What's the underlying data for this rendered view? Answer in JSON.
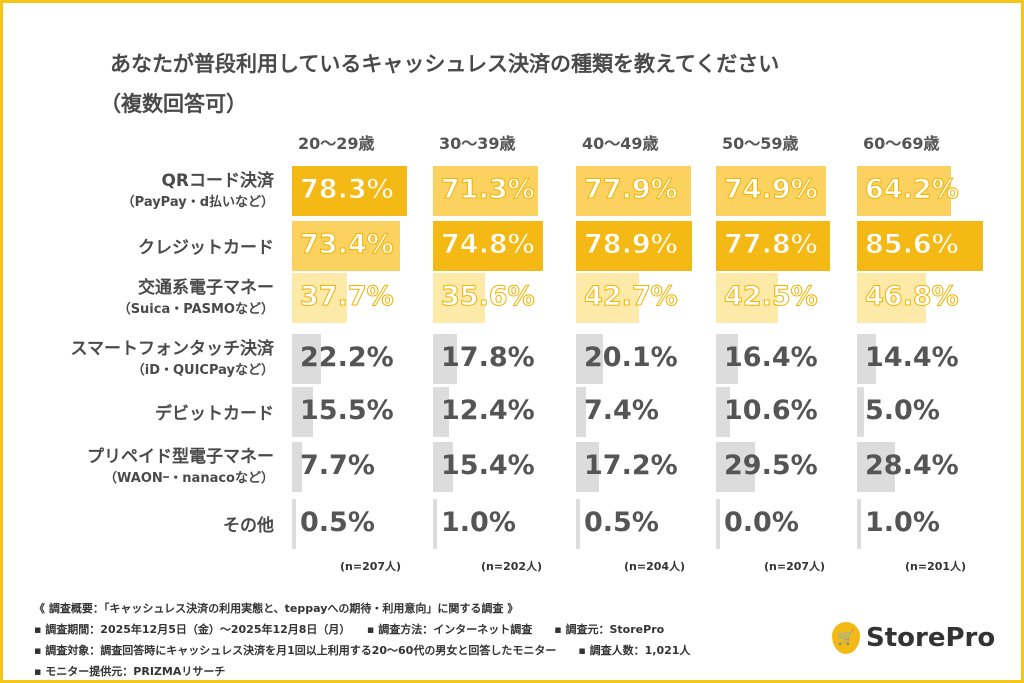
{
  "chart_data": {
    "type": "heatmap",
    "title": "あなたが普段利用しているキャッシュレス決済の種類を教えてください",
    "subtitle": "（複数回答可）",
    "columns": [
      "20〜29歳",
      "30〜39歳",
      "40〜49歳",
      "50〜59歳",
      "60〜69歳"
    ],
    "sample_sizes": [
      "(n=207人)",
      "(n=202人)",
      "(n=204人)",
      "(n=207人)",
      "(n=201人)"
    ],
    "rows": [
      {
        "label": "QRコード決済",
        "sub": "（PayPay・d払いなど）",
        "values": [
          78.3,
          71.3,
          77.9,
          74.9,
          64.2
        ]
      },
      {
        "label": "クレジットカード",
        "sub": "",
        "values": [
          73.4,
          74.8,
          78.9,
          77.8,
          85.6
        ]
      },
      {
        "label": "交通系電子マネー",
        "sub": "（Suica・PASMOなど）",
        "values": [
          37.7,
          35.6,
          42.7,
          42.5,
          46.8
        ]
      },
      {
        "label": "スマートフォンタッチ決済",
        "sub": "（iD・QUICPayなど）",
        "values": [
          22.2,
          17.8,
          20.1,
          16.4,
          14.4
        ]
      },
      {
        "label": "デビットカード",
        "sub": "",
        "values": [
          15.5,
          12.4,
          7.4,
          10.6,
          5.0
        ]
      },
      {
        "label": "プリペイド型電子マネー",
        "sub": "（WAONｰ・nanacoなど）",
        "values": [
          7.7,
          15.4,
          17.2,
          29.5,
          28.4
        ]
      },
      {
        "label": "その他",
        "sub": "",
        "values": [
          0.5,
          1.0,
          0.5,
          0.0,
          1.0
        ]
      }
    ],
    "rank_colors": {
      "1": "#f5b915",
      "2": "#fbd260",
      "3": "#fde9a8",
      "other": "#dcdcdc"
    },
    "value_format": "percent"
  },
  "footer": [
    "《 調査概要：「キャッシュレス決済の利用実態と、teppayへの期待・利用意向」に関する調査 》",
    "▪ 調査期間：2025年12月5日（金）〜2025年12月8日（月）　　▪ 調査方法：インターネット調査　　▪ 調査元：StorePro",
    "▪ 調査対象：調査回答時にキャッシュレス決済を月1回以上利用する20〜60代の男女と回答したモニター　　▪ 調査人数：1,021人",
    "▪ モニター提供元：PRIZMAリサーチ"
  ],
  "logo": {
    "text": "StorePro",
    "icon": "cart-pin-icon"
  }
}
